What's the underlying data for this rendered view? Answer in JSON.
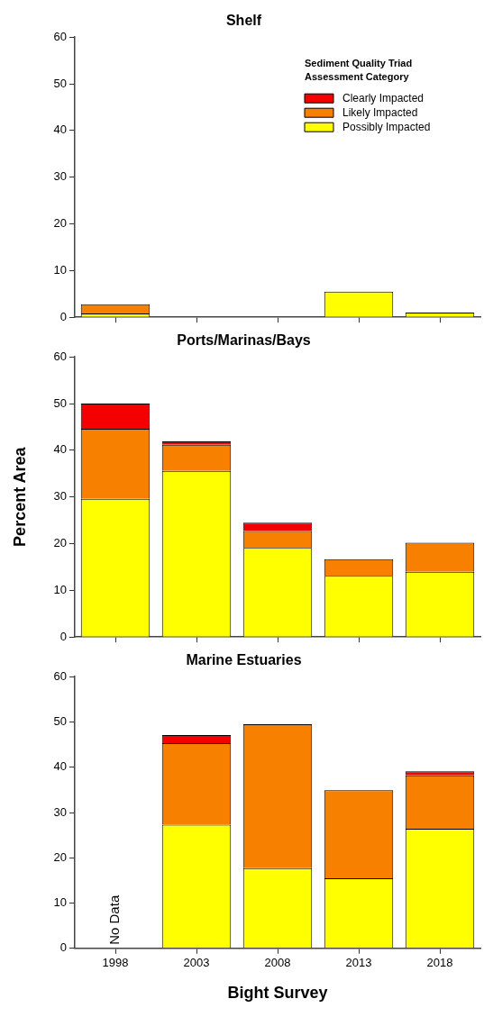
{
  "chart_data": [
    {
      "type": "bar",
      "title": "Shelf",
      "categories": [
        "1998",
        "2003",
        "2008",
        "2013",
        "2018"
      ],
      "stacked": true,
      "ylim": [
        0,
        60
      ],
      "yticks": [
        0,
        10,
        20,
        30,
        40,
        50,
        60
      ],
      "tick_labels": "y",
      "grid": false,
      "legend": "top right",
      "legend_title": "Sediment Quality Triad Assessment Category",
      "series": [
        {
          "name": "Possibly Impacted",
          "color": "#ffff00",
          "values": [
            0.8,
            null,
            null,
            5.5,
            1.0
          ]
        },
        {
          "name": "Likely Impacted",
          "color": "#f78000",
          "values": [
            2.0,
            null,
            null,
            null,
            null
          ]
        },
        {
          "name": "Clearly Impacted",
          "color": "#f50000",
          "values": [
            null,
            null,
            null,
            null,
            null
          ]
        }
      ]
    },
    {
      "type": "bar",
      "title": "Ports/Marinas/Bays",
      "ylabel": "Percent Area",
      "categories": [
        "1998",
        "2003",
        "2008",
        "2013",
        "2018"
      ],
      "stacked": true,
      "ylim": [
        0,
        60
      ],
      "yticks": [
        0,
        10,
        20,
        30,
        40,
        50,
        60
      ],
      "tick_labels": "y",
      "grid": false,
      "series": [
        {
          "color": "#ffff00",
          "values": [
            29.6,
            35.6,
            19.1,
            13.1,
            14.0
          ]
        },
        {
          "color": "#f78000",
          "values": [
            15.0,
            5.6,
            3.6,
            3.6,
            6.2
          ]
        },
        {
          "color": "#f50000",
          "values": [
            5.4,
            0.7,
            1.8,
            null,
            null
          ]
        }
      ]
    },
    {
      "type": "bar",
      "title": "Marine Estuaries",
      "xlabel": "Bight Survey",
      "categories": [
        "1998",
        "2003",
        "2008",
        "2013",
        "2018"
      ],
      "stacked": true,
      "ylim": [
        0,
        60
      ],
      "yticks": [
        0,
        10,
        20,
        30,
        40,
        50,
        60
      ],
      "grid": false,
      "annotations": [
        "No Data"
      ],
      "series": [
        {
          "color": "#ffff00",
          "values": [
            null,
            27.3,
            17.7,
            15.5,
            26.4
          ]
        },
        {
          "color": "#f78000",
          "values": [
            null,
            18.0,
            31.8,
            19.4,
            11.8
          ]
        },
        {
          "color": "#f50000",
          "values": [
            null,
            1.8,
            null,
            null,
            0.9
          ]
        }
      ]
    }
  ]
}
